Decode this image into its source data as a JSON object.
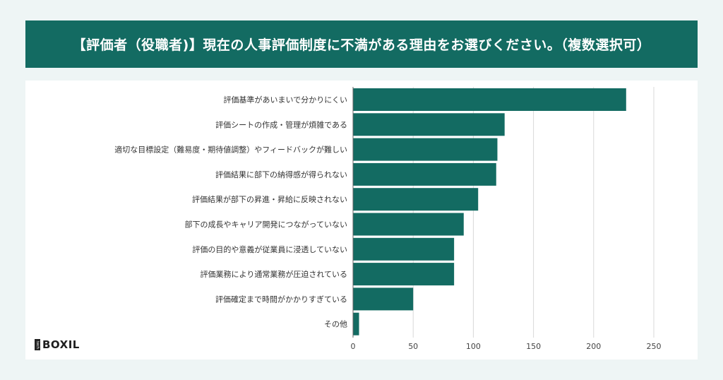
{
  "header": {
    "title": "【評価者（役職者)】現在の人事評価制度に不満がある理由をお選びください。（複数選択可）"
  },
  "logo": {
    "badge": "tech",
    "text": "BOXIL"
  },
  "colors": {
    "bar": "#136b62",
    "header_bg": "#136b62",
    "grid": "#d9d9d9"
  },
  "chart_data": {
    "type": "bar",
    "orientation": "horizontal",
    "title": "【評価者（役職者)】現在の人事評価制度に不満がある理由をお選びください。（複数選択可）",
    "categories": [
      "評価基準があいまいで分かりにくい",
      "評価シートの作成・管理が煩雑である",
      "適切な目標設定（難易度・期待値調整）やフィードバックが難しい",
      "評価結果に部下の納得感が得られない",
      "評価結果が部下の昇進・昇給に反映されない",
      "部下の成長やキャリア開発につながっていない",
      "評価の目的や意義が従業員に浸透していない",
      "評価業務により通常業務が圧迫されている",
      "評価確定まで時間がかかりすぎている",
      "その他"
    ],
    "values": [
      227,
      126,
      120,
      119,
      104,
      92,
      84,
      84,
      50,
      5
    ],
    "xlim": [
      0,
      250
    ],
    "xticks": [
      0,
      50,
      100,
      150,
      200,
      250
    ],
    "grid": true
  }
}
